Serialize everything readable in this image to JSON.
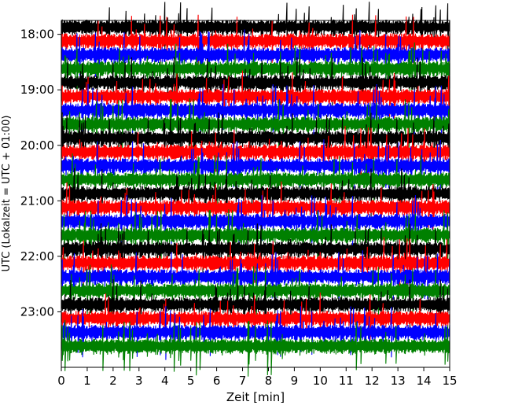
{
  "chart_data": {
    "type": "line",
    "subtype": "helicorder",
    "xlabel": "Zeit  [min]",
    "ylabel": "UTC (Lokalzeit = UTC + 01:00)",
    "xlim": [
      0,
      15
    ],
    "x_ticks": [
      "0",
      "1",
      "2",
      "3",
      "4",
      "5",
      "6",
      "7",
      "8",
      "9",
      "10",
      "11",
      "12",
      "13",
      "14",
      "15"
    ],
    "y_ticks": [
      "18:00",
      "19:00",
      "20:00",
      "21:00",
      "22:00",
      "23:00"
    ],
    "trace_interval_min": 15,
    "time_range": [
      "17:45",
      "24:00"
    ],
    "traces": [
      {
        "start": "17:45",
        "color": "#000000"
      },
      {
        "start": "18:00",
        "color": "#ff0000"
      },
      {
        "start": "18:15",
        "color": "#0000ff"
      },
      {
        "start": "18:30",
        "color": "#008000"
      },
      {
        "start": "18:45",
        "color": "#000000"
      },
      {
        "start": "19:00",
        "color": "#ff0000"
      },
      {
        "start": "19:15",
        "color": "#0000ff"
      },
      {
        "start": "19:30",
        "color": "#008000"
      },
      {
        "start": "19:45",
        "color": "#000000"
      },
      {
        "start": "20:00",
        "color": "#ff0000"
      },
      {
        "start": "20:15",
        "color": "#0000ff"
      },
      {
        "start": "20:30",
        "color": "#008000"
      },
      {
        "start": "20:45",
        "color": "#000000"
      },
      {
        "start": "21:00",
        "color": "#ff0000"
      },
      {
        "start": "21:15",
        "color": "#0000ff"
      },
      {
        "start": "21:30",
        "color": "#008000"
      },
      {
        "start": "21:45",
        "color": "#000000"
      },
      {
        "start": "22:00",
        "color": "#ff0000"
      },
      {
        "start": "22:15",
        "color": "#0000ff"
      },
      {
        "start": "22:30",
        "color": "#008000"
      },
      {
        "start": "22:45",
        "color": "#000000"
      },
      {
        "start": "23:00",
        "color": "#ff0000"
      },
      {
        "start": "23:15",
        "color": "#0000ff"
      },
      {
        "start": "23:30",
        "color": "#008000"
      }
    ],
    "grid": false,
    "legend": "none"
  }
}
